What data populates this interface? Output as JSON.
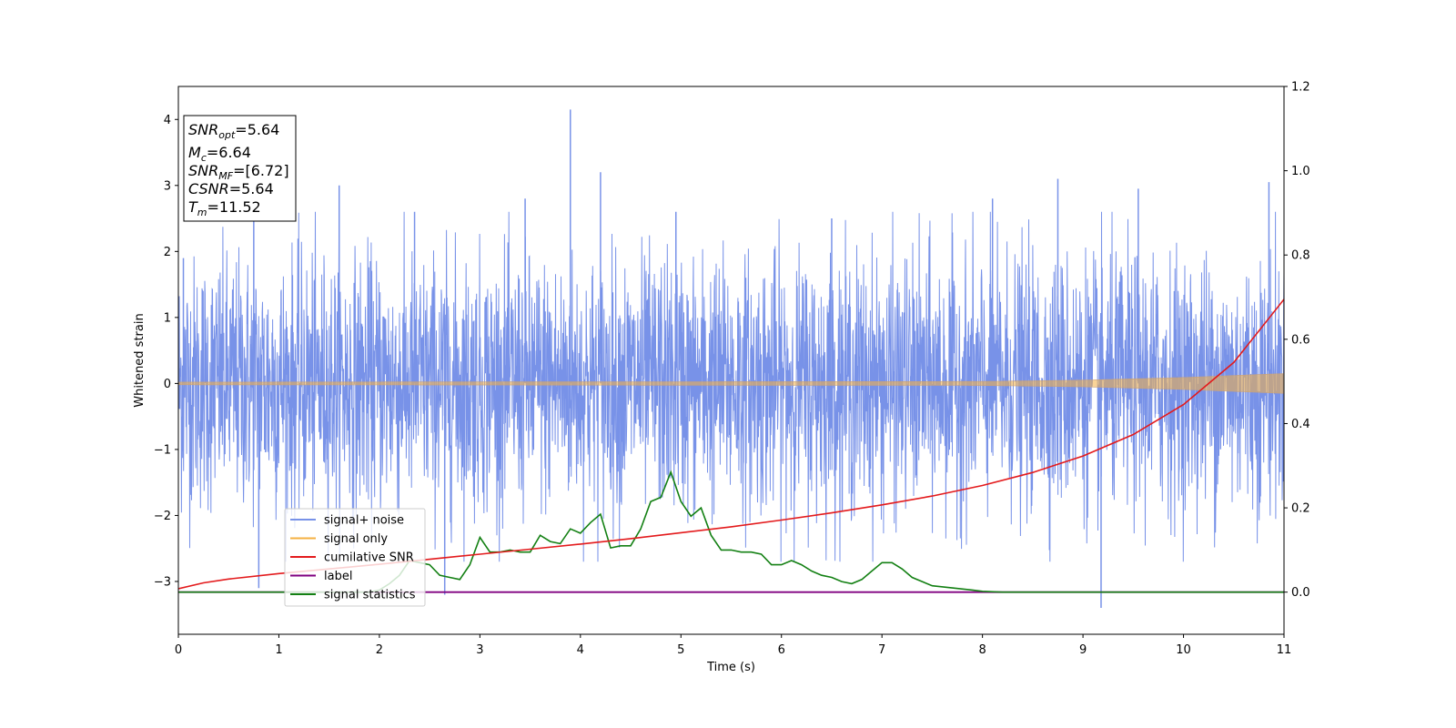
{
  "chart_data": {
    "type": "line",
    "xlabel": "Time (s)",
    "ylabel": "Whitened strain",
    "xlim": [
      0,
      11
    ],
    "ylim_left": [
      -3.8,
      4.5
    ],
    "ylim_right": [
      -0.1,
      1.2
    ],
    "x_ticks": [
      "0",
      "1",
      "2",
      "3",
      "4",
      "5",
      "6",
      "7",
      "8",
      "9",
      "10",
      "11"
    ],
    "y_ticks_left": [
      "−3",
      "−2",
      "−1",
      "0",
      "1",
      "2",
      "3",
      "4"
    ],
    "y_ticks_right": [
      "0.0",
      "0.2",
      "0.4",
      "0.6",
      "0.8",
      "1.0",
      "1.2"
    ],
    "grid": false,
    "legend_position": "lower-left",
    "annotation": {
      "snr_opt": {
        "base": "SNR",
        "sub": "opt",
        "value": "=5.64"
      },
      "mc": {
        "base": "M",
        "sub": "c",
        "value": "=6.64"
      },
      "snr_mf": {
        "base": "SNR",
        "sub": "MF",
        "value": "=[6.72]"
      },
      "csnr": {
        "base": "CSNR",
        "sub": "",
        "value": "=5.64"
      },
      "tm": {
        "base": "T",
        "sub": "m",
        "value": "=11.52"
      }
    },
    "series": [
      {
        "name": "signal+ noise",
        "color": "#7892e8",
        "axis": "left",
        "note": "whitened noise, approx ±1.5 with spikes up to 4.2",
        "peaks": [
          [
            0.05,
            1.9
          ],
          [
            0.75,
            2.5
          ],
          [
            1.6,
            3.0
          ],
          [
            2.35,
            2.6
          ],
          [
            3.45,
            2.8
          ],
          [
            3.9,
            4.15
          ],
          [
            4.2,
            3.2
          ],
          [
            4.95,
            2.6
          ],
          [
            6.5,
            2.5
          ],
          [
            8.1,
            2.8
          ],
          [
            8.75,
            3.1
          ],
          [
            9.55,
            2.95
          ],
          [
            10.85,
            3.05
          ],
          [
            9.18,
            -3.4
          ],
          [
            0.8,
            -3.1
          ],
          [
            2.65,
            -3.2
          ]
        ]
      },
      {
        "name": "signal only",
        "color": "#f5b041",
        "axis": "left",
        "envelope": [
          [
            0,
            0.02
          ],
          [
            8,
            0.03
          ],
          [
            9,
            0.05
          ],
          [
            10,
            0.09
          ],
          [
            11,
            0.15
          ]
        ]
      },
      {
        "name": "cumilative SNR",
        "color": "#e31a1c",
        "axis": "right",
        "x": [
          0,
          0.25,
          0.5,
          1,
          1.5,
          2,
          2.5,
          3,
          3.5,
          4,
          4.5,
          5,
          5.5,
          6,
          6.5,
          7,
          7.5,
          8,
          8.5,
          9,
          9.5,
          10,
          10.5,
          11
        ],
        "values": [
          0.008,
          0.022,
          0.031,
          0.044,
          0.055,
          0.066,
          0.078,
          0.09,
          0.102,
          0.114,
          0.127,
          0.141,
          0.155,
          0.171,
          0.188,
          0.207,
          0.228,
          0.253,
          0.284,
          0.323,
          0.374,
          0.445,
          0.545,
          0.695
        ]
      },
      {
        "name": "label",
        "color": "#800080",
        "axis": "right",
        "x": [
          0,
          11
        ],
        "values": [
          0.0,
          0.0
        ]
      },
      {
        "name": "signal statistics",
        "color": "#138013",
        "axis": "right",
        "x": [
          0,
          1.9,
          2.0,
          2.1,
          2.2,
          2.3,
          2.4,
          2.5,
          2.6,
          2.7,
          2.8,
          2.9,
          3.0,
          3.1,
          3.2,
          3.3,
          3.4,
          3.5,
          3.6,
          3.7,
          3.8,
          3.9,
          4.0,
          4.1,
          4.2,
          4.3,
          4.4,
          4.5,
          4.6,
          4.7,
          4.8,
          4.9,
          5.0,
          5.1,
          5.2,
          5.3,
          5.4,
          5.5,
          5.6,
          5.7,
          5.8,
          5.9,
          6.0,
          6.1,
          6.2,
          6.3,
          6.4,
          6.5,
          6.6,
          6.7,
          6.8,
          6.9,
          7.0,
          7.1,
          7.2,
          7.3,
          7.5,
          7.7,
          7.9,
          8.0,
          8.2,
          9.0,
          11.0
        ],
        "values": [
          0.0,
          0.0,
          0.005,
          0.02,
          0.04,
          0.075,
          0.07,
          0.065,
          0.04,
          0.035,
          0.03,
          0.065,
          0.13,
          0.095,
          0.095,
          0.1,
          0.095,
          0.095,
          0.135,
          0.12,
          0.115,
          0.15,
          0.14,
          0.165,
          0.185,
          0.105,
          0.11,
          0.11,
          0.15,
          0.215,
          0.225,
          0.285,
          0.215,
          0.18,
          0.2,
          0.135,
          0.1,
          0.1,
          0.095,
          0.095,
          0.09,
          0.065,
          0.065,
          0.075,
          0.065,
          0.05,
          0.04,
          0.035,
          0.025,
          0.02,
          0.03,
          0.05,
          0.07,
          0.07,
          0.055,
          0.035,
          0.015,
          0.01,
          0.005,
          0.002,
          0.0,
          0.0,
          0.0
        ]
      }
    ]
  }
}
